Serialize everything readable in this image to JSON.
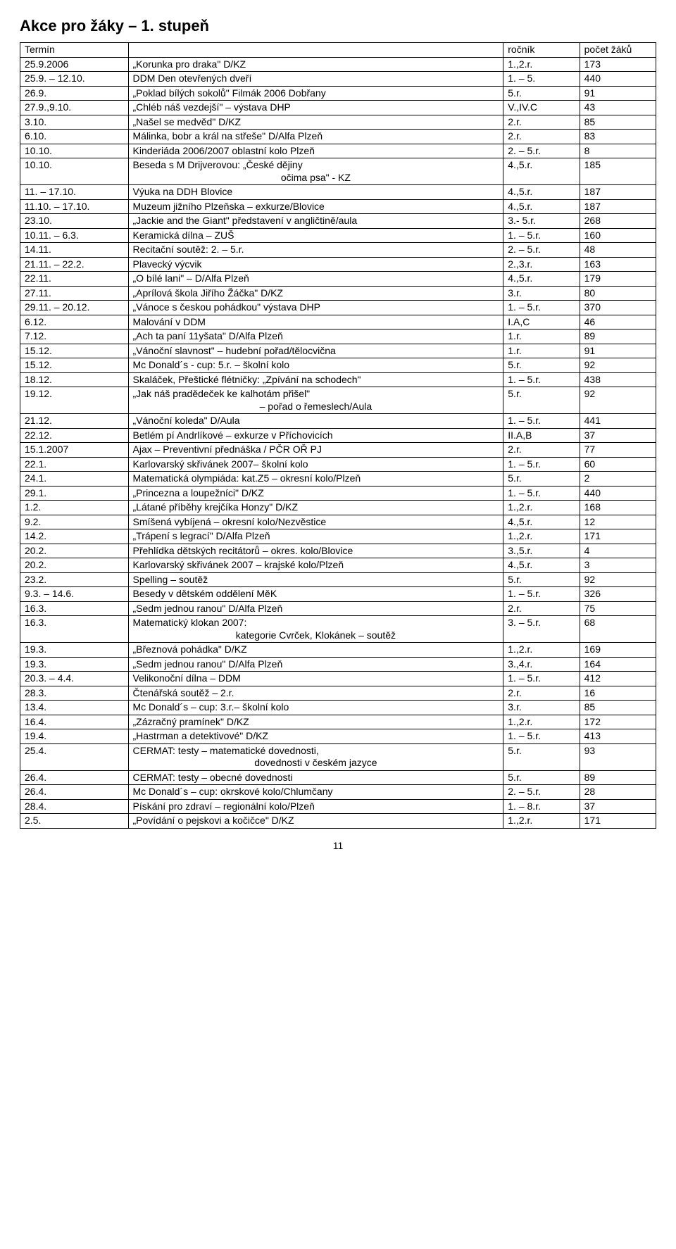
{
  "title": "Akce pro žáky – 1. stupeň",
  "headers": {
    "c1": "Termín",
    "c2": "",
    "c3": "ročník",
    "c4": "počet žáků"
  },
  "page_number": "11",
  "rows": [
    {
      "d": "25.9.2006",
      "t": "„Korunka pro draka\" D/KZ",
      "r": "1.,2.r.",
      "n": "173"
    },
    {
      "d": "25.9. – 12.10.",
      "t": "DDM Den otevřených dveří",
      "r": "1. – 5.",
      "n": "440"
    },
    {
      "d": "26.9.",
      "t": "„Poklad bílých sokolů\" Filmák 2006 Dobřany",
      "r": "5.r.",
      "n": "91"
    },
    {
      "d": "27.9.,9.10.",
      "t": "„Chléb náš vezdejší\" – výstava DHP",
      "r": "V.,IV.C",
      "n": "43"
    },
    {
      "d": "3.10.",
      "t": "„Našel se medvěd\" D/KZ",
      "r": "2.r.",
      "n": "85"
    },
    {
      "d": "6.10.",
      "t": "Málinka, bobr a král na střeše\" D/Alfa Plzeň",
      "r": "2.r.",
      "n": "83"
    },
    {
      "d": "10.10.",
      "t": "Kinderiáda 2006/2007 oblastní kolo Plzeň",
      "r": "2. – 5.r.",
      "n": "8"
    },
    {
      "d": "10.10.",
      "t": "Beseda s M Drijverovou: „České dějiny",
      "sub": "očima psa\" - KZ",
      "r": "4.,5.r.",
      "n": "185"
    },
    {
      "d": "11. – 17.10.",
      "t": "Výuka na DDH Blovice",
      "r": "4.,5.r.",
      "n": "187"
    },
    {
      "d": "11.10. – 17.10.",
      "t": "Muzeum jižního Plzeňska – exkurze/Blovice",
      "r": "4.,5.r.",
      "n": "187"
    },
    {
      "d": "23.10.",
      "t": "„Jackie and the Giant\" představení v angličtině/aula",
      "r": "3.- 5.r.",
      "n": "268"
    },
    {
      "d": "10.11. – 6.3.",
      "t": "Keramická dílna – ZUŠ",
      "r": "1. – 5.r.",
      "n": "160"
    },
    {
      "d": "14.11.",
      "t": "Recitační soutěž: 2. – 5.r.",
      "r": "2. – 5.r.",
      "n": "48"
    },
    {
      "d": "21.11. – 22.2.",
      "t": "Plavecký výcvik",
      "r": "2.,3.r.",
      "n": "163"
    },
    {
      "d": "22.11.",
      "t": "„O bílé lani\" – D/Alfa Plzeň",
      "r": "4.,5.r.",
      "n": "179"
    },
    {
      "d": "27.11.",
      "t": "„Aprílová škola Jiřího Žáčka\" D/KZ",
      "r": "3.r.",
      "n": "80"
    },
    {
      "d": "29.11. – 20.12.",
      "t": "„Vánoce s českou pohádkou\" výstava DHP",
      "r": "1. – 5.r.",
      "n": "370"
    },
    {
      "d": "6.12.",
      "t": "Malování v DDM",
      "r": "I.A,C",
      "n": "46"
    },
    {
      "d": "7.12.",
      "t": "„Ach ta paní 11yšata\" D/Alfa Plzeň",
      "r": "1.r.",
      "n": "89"
    },
    {
      "d": "15.12.",
      "t": "„Vánoční slavnost\" – hudební pořad/tělocvična",
      "r": "1.r.",
      "n": "91"
    },
    {
      "d": "15.12.",
      "t": "Mc Donald´s - cup: 5.r. – školní kolo",
      "r": "5.r.",
      "n": "92"
    },
    {
      "d": "18.12.",
      "t": "Skaláček, Přeštické flétničky: „Zpívání na schodech\"",
      "r": "1. – 5.r.",
      "n": "438"
    },
    {
      "d": "19.12.",
      "t": "„Jak náš pradědeček ke kalhotám přišel\"",
      "sub": "– pořad o řemeslech/Aula",
      "r": "5.r.",
      "n": "92"
    },
    {
      "d": "21.12.",
      "t": "„Vánoční koleda\" D/Aula",
      "r": "1. – 5.r.",
      "n": "441"
    },
    {
      "d": "22.12.",
      "t": "Betlém pí Andrlíkové – exkurze v Příchovicích",
      "r": "II.A,B",
      "n": "37"
    },
    {
      "d": "15.1.2007",
      "t": "Ajax – Preventivní přednáška / PČR OŘ PJ",
      "r": "2.r.",
      "n": "77"
    },
    {
      "d": "22.1.",
      "t": "Karlovarský skřivánek 2007– školní kolo",
      "r": "1. – 5.r.",
      "n": "60"
    },
    {
      "d": "24.1.",
      "t": "Matematická olympiáda: kat.Z5 – okresní kolo/Plzeň",
      "r": "5.r.",
      "n": "2"
    },
    {
      "d": "29.1.",
      "t": "„Princezna a loupežníci\" D/KZ",
      "r": "1. – 5.r.",
      "n": "440"
    },
    {
      "d": "1.2.",
      "t": "„Látané příběhy krejčíka Honzy\" D/KZ",
      "r": "1.,2.r.",
      "n": "168"
    },
    {
      "d": "9.2.",
      "t": "Smíšená vybíjená – okresní kolo/Nezvěstice",
      "r": "4.,5.r.",
      "n": "12"
    },
    {
      "d": "14.2.",
      "t": "„Trápení s legrací\" D/Alfa Plzeň",
      "r": "1.,2.r.",
      "n": "171"
    },
    {
      "d": "20.2.",
      "t": "Přehlídka dětských recitátorů – okres. kolo/Blovice",
      "r": "3.,5.r.",
      "n": "4"
    },
    {
      "d": "20.2.",
      "t": "Karlovarský skřivánek 2007 – krajské kolo/Plzeň",
      "r": "4.,5.r.",
      "n": "3"
    },
    {
      "d": "23.2.",
      "t": "Spelling – soutěž",
      "r": "5.r.",
      "n": "92"
    },
    {
      "d": "9.3. – 14.6.",
      "t": "Besedy v dětském oddělení MěK",
      "r": "1. – 5.r.",
      "n": "326"
    },
    {
      "d": "16.3.",
      "t": "„Sedm jednou ranou\" D/Alfa Plzeň",
      "r": "2.r.",
      "n": "75"
    },
    {
      "d": "16.3.",
      "t": "Matematický klokan 2007:",
      "sub": "kategorie Cvrček, Klokánek – soutěž",
      "r": "3. – 5.r.",
      "n": "68"
    },
    {
      "d": "19.3.",
      "t": "„Březnová pohádka\" D/KZ",
      "r": "1.,2.r.",
      "n": "169"
    },
    {
      "d": "19.3.",
      "t": "„Sedm jednou ranou\" D/Alfa Plzeň",
      "r": "3.,4.r.",
      "n": "164"
    },
    {
      "d": "20.3. – 4.4.",
      "t": "Velikonoční dílna – DDM",
      "r": "1. – 5.r.",
      "n": "412"
    },
    {
      "d": "28.3.",
      "t": "Čtenářská soutěž – 2.r.",
      "r": "2.r.",
      "n": "16"
    },
    {
      "d": "13.4.",
      "t": "Mc Donald´s – cup: 3.r.– školní kolo",
      "r": "3.r.",
      "n": "85"
    },
    {
      "d": "16.4.",
      "t": "„Zázračný pramínek\" D/KZ",
      "r": "1.,2.r.",
      "n": "172"
    },
    {
      "d": "19.4.",
      "t": "„Hastrman a detektivové\" D/KZ",
      "r": "1. – 5.r.",
      "n": "413"
    },
    {
      "d": "25.4.",
      "t": "CERMAT: testy – matematické dovednosti,",
      "sub": "dovednosti v českém jazyce",
      "r": "5.r.",
      "n": "93"
    },
    {
      "d": "26.4.",
      "t": "CERMAT: testy – obecné dovednosti",
      "r": "5.r.",
      "n": "89"
    },
    {
      "d": "26.4.",
      "t": "Mc Donald´s – cup: okrskové kolo/Chlumčany",
      "r": "2. – 5.r.",
      "n": "28"
    },
    {
      "d": "28.4.",
      "t": "Pískání pro zdraví – regionální kolo/Plzeň",
      "r": "1. – 8.r.",
      "n": "37"
    },
    {
      "d": "2.5.",
      "t": "„Povídání o pejskovi a kočičce\" D/KZ",
      "r": "1.,2.r.",
      "n": "171"
    }
  ]
}
